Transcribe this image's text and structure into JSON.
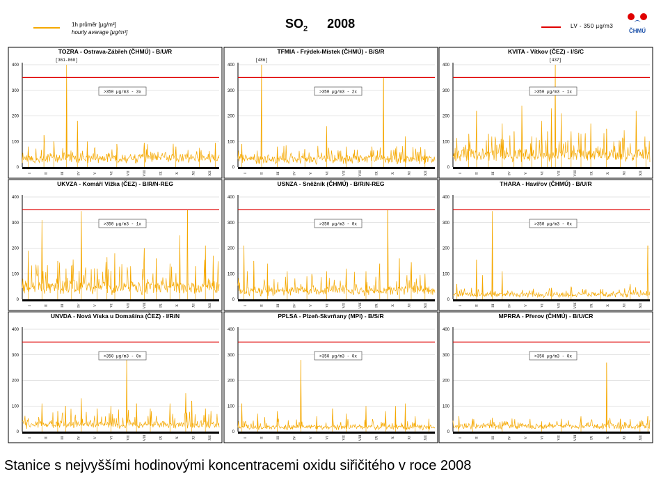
{
  "header": {
    "legend_line_cz": "1h průměr [µg/m³]",
    "legend_line_en": "hourly average [µg/m³]",
    "title_pollutant": "SO",
    "title_subscript": "2",
    "title_year": "2008",
    "limit_legend": "LV  - 350 µg/m3",
    "logo_text": "ČHMÚ"
  },
  "colors": {
    "series": "#f5a800",
    "limit": "#e00000",
    "axis": "#000000",
    "gridline": "#c8c8c8"
  },
  "footer_text": "Stanice s nejvyššími hodinovými koncentracemi oxidu siřičitého v roce 2008",
  "chart_data": [
    {
      "type": "line",
      "title": "TOZRA - Ostrava-Zábřeh (ČHMÚ) - B/U/R",
      "limit": 350,
      "exceed_label": ">350 µg/m3 - 3x",
      "max_label": "[361-860]",
      "ylim": [
        0,
        400
      ],
      "yticks": [
        0,
        100,
        200,
        300,
        400
      ],
      "months": [
        "I",
        "II",
        "III",
        "IV",
        "V",
        "VI",
        "VII",
        "VIII",
        "IX",
        "X",
        "XI",
        "XII"
      ],
      "baseline": 35,
      "noise": 28,
      "spikes": [
        [
          0.03,
          80
        ],
        [
          0.11,
          125
        ],
        [
          0.16,
          100
        ],
        [
          0.225,
          400
        ],
        [
          0.28,
          180
        ],
        [
          0.33,
          100
        ],
        [
          0.48,
          90
        ],
        [
          0.62,
          95
        ],
        [
          0.78,
          80
        ],
        [
          0.9,
          75
        ],
        [
          0.98,
          95
        ]
      ]
    },
    {
      "type": "line",
      "title": "TFMIA - Frýdek-Místek (ČHMÚ) - B/S/R",
      "limit": 350,
      "exceed_label": ">350 µg/m3 - 2x",
      "max_label": "[486]",
      "ylim": [
        0,
        400
      ],
      "yticks": [
        0,
        100,
        200,
        300,
        400
      ],
      "months": [
        "I",
        "II",
        "III",
        "IV",
        "V",
        "VI",
        "VII",
        "VIII",
        "IX",
        "X",
        "XI",
        "XII"
      ],
      "baseline": 30,
      "noise": 25,
      "spikes": [
        [
          0.02,
          90
        ],
        [
          0.12,
          400
        ],
        [
          0.2,
          80
        ],
        [
          0.34,
          70
        ],
        [
          0.45,
          160
        ],
        [
          0.55,
          80
        ],
        [
          0.68,
          80
        ],
        [
          0.74,
          350
        ],
        [
          0.85,
          120
        ],
        [
          0.95,
          70
        ]
      ]
    },
    {
      "type": "line",
      "title": "KVITA - Vítkov (ČEZ) - I/S/C",
      "limit": 350,
      "exceed_label": ">350 µg/m3 - 1x",
      "max_label": "[437]",
      "ylim": [
        0,
        400
      ],
      "yticks": [
        0,
        100,
        200,
        300,
        400
      ],
      "months": [
        "I",
        "II",
        "III",
        "IV",
        "V",
        "VI",
        "VII",
        "VIII",
        "IX",
        "X",
        "XI",
        "XII"
      ],
      "baseline": 45,
      "noise": 45,
      "spikes": [
        [
          0.08,
          130
        ],
        [
          0.12,
          220
        ],
        [
          0.18,
          130
        ],
        [
          0.25,
          170
        ],
        [
          0.31,
          140
        ],
        [
          0.35,
          240
        ],
        [
          0.4,
          120
        ],
        [
          0.45,
          180
        ],
        [
          0.48,
          140
        ],
        [
          0.5,
          230
        ],
        [
          0.52,
          400
        ],
        [
          0.55,
          210
        ],
        [
          0.6,
          140
        ],
        [
          0.65,
          130
        ],
        [
          0.7,
          170
        ],
        [
          0.78,
          150
        ],
        [
          0.85,
          100
        ],
        [
          0.93,
          220
        ],
        [
          0.98,
          80
        ]
      ]
    },
    {
      "type": "line",
      "title": "UKVZA - Komáří Vížka (ČEZ) - B/R/N-REG",
      "limit": 350,
      "exceed_label": ">350 µg/m3 - 1x",
      "max_label": "",
      "ylim": [
        0,
        400
      ],
      "yticks": [
        0,
        100,
        200,
        300,
        400
      ],
      "months": [
        "I",
        "II",
        "III",
        "IV",
        "V",
        "VI",
        "VII",
        "VIII",
        "IX",
        "X",
        "XI",
        "XII"
      ],
      "baseline": 40,
      "noise": 60,
      "spikes": [
        [
          0.03,
          190
        ],
        [
          0.1,
          310
        ],
        [
          0.18,
          150
        ],
        [
          0.25,
          130
        ],
        [
          0.3,
          345
        ],
        [
          0.38,
          120
        ],
        [
          0.43,
          165
        ],
        [
          0.47,
          180
        ],
        [
          0.55,
          130
        ],
        [
          0.62,
          200
        ],
        [
          0.68,
          160
        ],
        [
          0.75,
          140
        ],
        [
          0.8,
          250
        ],
        [
          0.84,
          350
        ],
        [
          0.88,
          130
        ],
        [
          0.93,
          210
        ],
        [
          0.97,
          170
        ]
      ]
    },
    {
      "type": "line",
      "title": "USNZA - Sněžník (ČHMÚ) - B/R/N-REG",
      "limit": 350,
      "exceed_label": ">350 µg/m3 - 0x",
      "max_label": "",
      "ylim": [
        0,
        400
      ],
      "yticks": [
        0,
        100,
        200,
        300,
        400
      ],
      "months": [
        "I",
        "II",
        "III",
        "IV",
        "V",
        "VI",
        "VII",
        "VIII",
        "IX",
        "X",
        "XI",
        "XII"
      ],
      "baseline": 30,
      "noise": 40,
      "spikes": [
        [
          0.03,
          210
        ],
        [
          0.08,
          150
        ],
        [
          0.15,
          140
        ],
        [
          0.25,
          110
        ],
        [
          0.35,
          90
        ],
        [
          0.45,
          110
        ],
        [
          0.55,
          120
        ],
        [
          0.65,
          110
        ],
        [
          0.72,
          140
        ],
        [
          0.76,
          350
        ],
        [
          0.82,
          160
        ],
        [
          0.88,
          145
        ],
        [
          0.95,
          100
        ]
      ]
    },
    {
      "type": "line",
      "title": "THARA - Havířov (ČHMÚ) - B/U/R",
      "limit": 350,
      "exceed_label": ">350 µg/m3 - 0x",
      "max_label": "",
      "ylim": [
        0,
        400
      ],
      "yticks": [
        0,
        100,
        200,
        300,
        400
      ],
      "months": [
        "I",
        "II",
        "III",
        "IV",
        "V",
        "VI",
        "VII",
        "VIII",
        "IX",
        "X",
        "XI",
        "XII"
      ],
      "baseline": 18,
      "noise": 14,
      "spikes": [
        [
          0.02,
          60
        ],
        [
          0.12,
          155
        ],
        [
          0.15,
          95
        ],
        [
          0.2,
          345
        ],
        [
          0.25,
          110
        ],
        [
          0.5,
          45
        ],
        [
          0.6,
          50
        ],
        [
          0.75,
          40
        ],
        [
          0.9,
          60
        ],
        [
          0.99,
          210
        ]
      ]
    },
    {
      "type": "line",
      "title": "UNVDA - Nová Víska u Domašína (ČEZ) - I/R/N",
      "limit": 350,
      "exceed_label": ">350 µg/m3 - 0x",
      "max_label": "",
      "ylim": [
        0,
        400
      ],
      "yticks": [
        0,
        100,
        200,
        300,
        400
      ],
      "months": [
        "I",
        "II",
        "III",
        "IV",
        "V",
        "VI",
        "VII",
        "VIII",
        "IX",
        "X",
        "XI",
        "XII"
      ],
      "baseline": 25,
      "noise": 30,
      "spikes": [
        [
          0.1,
          110
        ],
        [
          0.18,
          80
        ],
        [
          0.22,
          100
        ],
        [
          0.3,
          130
        ],
        [
          0.38,
          90
        ],
        [
          0.45,
          100
        ],
        [
          0.53,
          280
        ],
        [
          0.58,
          110
        ],
        [
          0.65,
          90
        ],
        [
          0.75,
          110
        ],
        [
          0.83,
          150
        ],
        [
          0.86,
          120
        ],
        [
          0.93,
          90
        ]
      ]
    },
    {
      "type": "line",
      "title": "PPLSA - Plzeň-Skvrňany (MPI) - B/S/R",
      "limit": 350,
      "exceed_label": ">350 µg/m3 - 0x",
      "max_label": "",
      "ylim": [
        0,
        400
      ],
      "yticks": [
        0,
        100,
        200,
        300,
        400
      ],
      "months": [
        "I",
        "II",
        "III",
        "IV",
        "V",
        "VI",
        "VII",
        "VIII",
        "IX",
        "X",
        "XI",
        "XII"
      ],
      "baseline": 15,
      "noise": 20,
      "spikes": [
        [
          0.02,
          110
        ],
        [
          0.1,
          70
        ],
        [
          0.2,
          80
        ],
        [
          0.32,
          280
        ],
        [
          0.4,
          60
        ],
        [
          0.48,
          90
        ],
        [
          0.55,
          70
        ],
        [
          0.65,
          100
        ],
        [
          0.75,
          80
        ],
        [
          0.8,
          100
        ],
        [
          0.85,
          110
        ],
        [
          0.9,
          60
        ],
        [
          0.97,
          50
        ]
      ]
    },
    {
      "type": "line",
      "title": "MPRRA - Přerov (ČHMÚ) - B/U/CR",
      "limit": 350,
      "exceed_label": ">350 µg/m3 - 0x",
      "max_label": "",
      "ylim": [
        0,
        400
      ],
      "yticks": [
        0,
        100,
        200,
        300,
        400
      ],
      "months": [
        "I",
        "II",
        "III",
        "IV",
        "V",
        "VI",
        "VII",
        "VIII",
        "IX",
        "X",
        "XI",
        "XII"
      ],
      "baseline": 20,
      "noise": 18,
      "spikes": [
        [
          0.03,
          60
        ],
        [
          0.1,
          50
        ],
        [
          0.25,
          40
        ],
        [
          0.45,
          40
        ],
        [
          0.55,
          50
        ],
        [
          0.65,
          60
        ],
        [
          0.78,
          270
        ],
        [
          0.85,
          50
        ],
        [
          0.95,
          40
        ],
        [
          0.99,
          60
        ]
      ]
    }
  ]
}
